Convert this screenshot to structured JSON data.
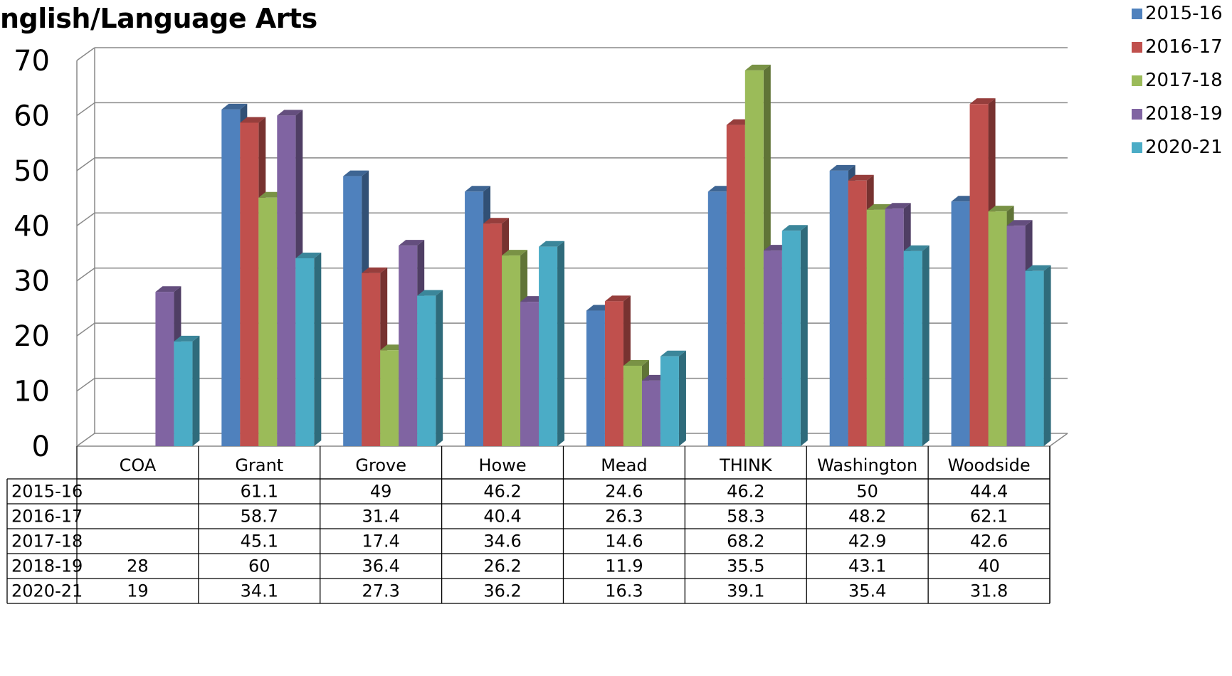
{
  "chart_data": {
    "type": "bar",
    "title": "nglish/Language Arts",
    "categories": [
      "COA",
      "Grant",
      "Grove",
      "Howe",
      "Mead",
      "THINK",
      "Washington",
      "Woodside"
    ],
    "series": [
      {
        "name": "2015-16",
        "values": [
          null,
          61.1,
          49,
          46.2,
          24.6,
          46.2,
          50,
          44.4
        ],
        "labels": [
          "",
          "61.1",
          "49",
          "46.2",
          "24.6",
          "46.2",
          "50",
          "44.4"
        ]
      },
      {
        "name": "2016-17",
        "values": [
          null,
          58.7,
          31.4,
          40.4,
          26.3,
          58.3,
          48.2,
          62.1
        ],
        "labels": [
          "",
          "58.7",
          "31.4",
          "40.4",
          "26.3",
          "58.3",
          "48.2",
          "62.1"
        ]
      },
      {
        "name": "2017-18",
        "values": [
          null,
          45.1,
          17.4,
          34.6,
          14.6,
          68.2,
          42.9,
          42.6
        ],
        "labels": [
          "",
          "45.1",
          "17.4",
          "34.6",
          "14.6",
          "68.2",
          "42.9",
          "42.6"
        ]
      },
      {
        "name": "2018-19",
        "values": [
          28,
          60,
          36.4,
          26.2,
          11.9,
          35.5,
          43.1,
          40
        ],
        "labels": [
          "28",
          "60",
          "36.4",
          "26.2",
          "11.9",
          "35.5",
          "43.1",
          "40"
        ]
      },
      {
        "name": "2020-21",
        "values": [
          19,
          34.1,
          27.3,
          36.2,
          16.3,
          39.1,
          35.4,
          31.8
        ],
        "labels": [
          "19",
          "34.1",
          "27.3",
          "36.2",
          "16.3",
          "39.1",
          "35.4",
          "31.8"
        ]
      }
    ],
    "yticks": [
      "0",
      "10",
      "20",
      "30",
      "40",
      "50",
      "60",
      "70"
    ],
    "ylim": [
      0,
      70
    ],
    "grid": true,
    "legend": "top-right",
    "data_table": true,
    "colors": [
      "#4F81BD",
      "#C0504D",
      "#9BBB59",
      "#8064A2",
      "#4BACC6"
    ]
  }
}
